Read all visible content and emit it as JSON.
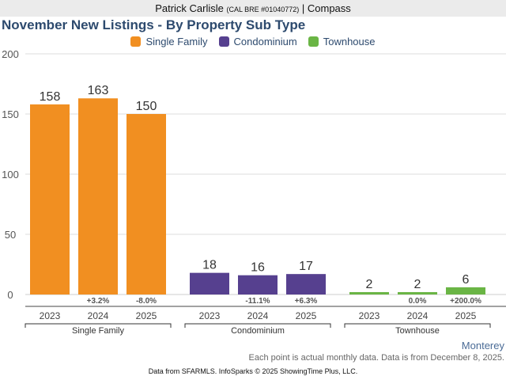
{
  "header": {
    "agent_name": "Patrick Carlisle",
    "license": "(CAL BRE #01040772)",
    "separator": "|",
    "brokerage": "Compass"
  },
  "region": "Monterey",
  "note": "Each point is actual monthly data. Data is from December 8, 2025.",
  "footer": "Data from SFARMLS. InfoSparks © 2025 ShowingTime Plus, LLC.",
  "chart_data": {
    "type": "bar",
    "title": "November New Listings - By Property Sub Type",
    "xlabel": "",
    "ylabel": "",
    "ylim": [
      0,
      200
    ],
    "yticks": [
      0,
      50,
      100,
      150,
      200
    ],
    "grid": true,
    "legend_position": "top-center",
    "groups": [
      {
        "name": "Single Family",
        "color": "#f18f21",
        "categories": [
          "2023",
          "2024",
          "2025"
        ],
        "values": [
          158,
          163,
          150
        ],
        "changes": [
          "",
          "+3.2%",
          "-8.0%"
        ]
      },
      {
        "name": "Condominium",
        "color": "#56408f",
        "categories": [
          "2023",
          "2024",
          "2025"
        ],
        "values": [
          18,
          16,
          17
        ],
        "changes": [
          "",
          "-11.1%",
          "+6.3%"
        ]
      },
      {
        "name": "Townhouse",
        "color": "#6ab545",
        "categories": [
          "2023",
          "2024",
          "2025"
        ],
        "values": [
          2,
          2,
          6
        ],
        "changes": [
          "",
          "0.0%",
          "+200.0%"
        ]
      }
    ]
  }
}
